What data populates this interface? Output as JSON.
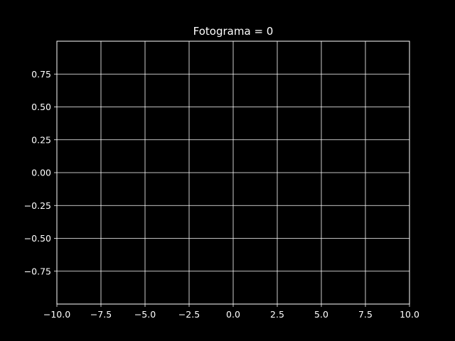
{
  "chart_data": {
    "type": "line",
    "title": "Fotograma = 0",
    "xlabel": "",
    "ylabel": "",
    "xlim": [
      -10,
      10
    ],
    "ylim": [
      -1,
      1
    ],
    "x_ticks": [
      -10,
      -7.5,
      -5,
      -2.5,
      0,
      2.5,
      5,
      7.5,
      10
    ],
    "x_tick_labels": [
      "−10.0",
      "−7.5",
      "−5.0",
      "−2.5",
      "0.0",
      "2.5",
      "5.0",
      "7.5",
      "10.0"
    ],
    "y_ticks": [
      -0.75,
      -0.5,
      -0.25,
      0,
      0.25,
      0.5,
      0.75
    ],
    "y_tick_labels": [
      "−0.75",
      "−0.50",
      "−0.25",
      "0.00",
      "0.25",
      "0.50",
      "0.75"
    ],
    "grid": true,
    "series": [],
    "colors": {
      "background": "#000000",
      "foreground": "#ffffff"
    }
  }
}
